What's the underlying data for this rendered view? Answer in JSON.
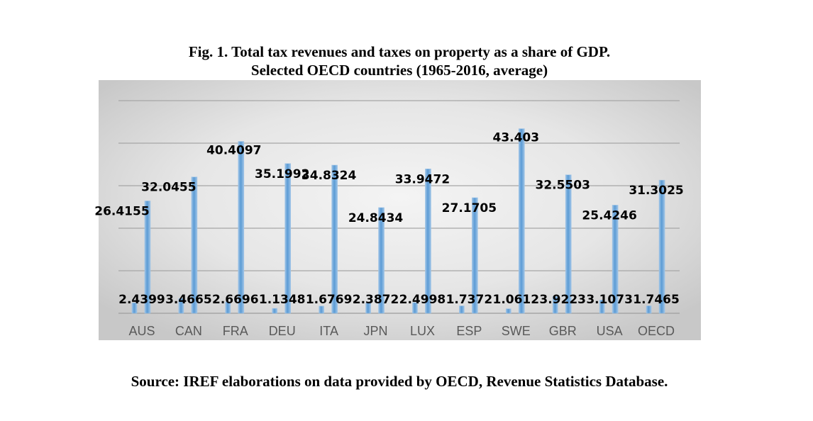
{
  "figure": {
    "title_line1": "Fig. 1. Total tax revenues and taxes on property as a share of GDP.",
    "title_line2": "Selected OECD countries (1965-2016, average)",
    "source": "Source: IREF elaborations on data provided by OECD, Revenue Statistics Database."
  },
  "chart_data": {
    "type": "bar",
    "title": "Fig. 1. Total tax revenues and taxes on property as a share of GDP. Selected OECD countries (1965-2016, average)",
    "xlabel": "",
    "ylabel": "",
    "ylim": [
      0,
      50
    ],
    "grid": true,
    "categories": [
      "AUS",
      "CAN",
      "FRA",
      "DEU",
      "ITA",
      "JPN",
      "LUX",
      "ESP",
      "SWE",
      "GBR",
      "USA",
      "OECD"
    ],
    "series": [
      {
        "name": "Taxes on property",
        "values": [
          2.4399,
          3.4665,
          2.6696,
          1.1348,
          1.6769,
          2.3872,
          2.4998,
          1.7372,
          1.0612,
          3.9223,
          3.1073,
          1.7465
        ],
        "labels": [
          "2.4399",
          "3.4665",
          "2.6696",
          "1.1348",
          "1.6769",
          "2.3872",
          "2.4998",
          "1.7372",
          "1.0612",
          "3.9223",
          "3.1073",
          "1.7465"
        ]
      },
      {
        "name": "Total tax revenues",
        "values": [
          26.4155,
          32.0455,
          40.4097,
          35.1992,
          34.8324,
          24.8434,
          33.9472,
          27.1705,
          43.403,
          32.5503,
          25.4246,
          31.3025
        ],
        "labels": [
          "26.4155",
          "32.0455",
          "40.4097",
          "35.1992",
          "34.8324",
          "24.8434",
          "33.9472",
          "27.1705",
          "43.403",
          "32.5503",
          "25.4246",
          "31.3025"
        ]
      }
    ],
    "colors": {
      "bar": "#5b9bd5",
      "bar_edge": "#9dc3e6",
      "grid": "#a6a6a6",
      "plot_bg_outer": "#cfcfcf",
      "plot_bg_inner": "#f2f2f2"
    }
  }
}
